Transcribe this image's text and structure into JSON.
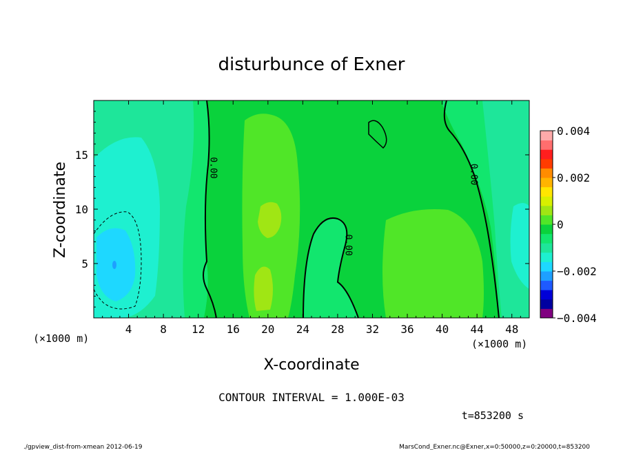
{
  "chart_data": {
    "type": "heatmap",
    "title": "disturbunce of Exner",
    "xlabel": "X-coordinate",
    "ylabel": "Z-coordinate",
    "x_unit_left": "(×1000 m)",
    "x_unit_right": "(×1000 m)",
    "xlim": [
      0,
      50
    ],
    "ylim": [
      0,
      20
    ],
    "xticks": [
      4,
      8,
      12,
      16,
      20,
      24,
      28,
      32,
      36,
      40,
      44,
      48
    ],
    "yticks": [
      5,
      10,
      15
    ],
    "colorbar": {
      "min": -0.004,
      "max": 0.004,
      "ticks": [
        {
          "value": 0.004,
          "label": "0.004"
        },
        {
          "value": 0.002,
          "label": "0.002"
        },
        {
          "value": 0,
          "label": "0"
        },
        {
          "value": -0.002,
          "label": "−0.002"
        },
        {
          "value": -0.004,
          "label": "−0.004"
        }
      ],
      "colors": [
        "#800080",
        "#0000a0",
        "#0000d8",
        "#1e5aff",
        "#1ea0ff",
        "#1ed8ff",
        "#1ef0d0",
        "#1ee69a",
        "#12e66e",
        "#0ad23c",
        "#50e628",
        "#a0e614",
        "#d8f000",
        "#ffe600",
        "#ffb400",
        "#ff8c00",
        "#ff3c00",
        "#ff1e1e",
        "#ff6e6e",
        "#ffaaaa"
      ]
    },
    "contour_labels": [
      {
        "x": 13.4,
        "z": 13.8,
        "text": "0.00"
      },
      {
        "x": 28.9,
        "z": 6.7,
        "text": "0.00"
      },
      {
        "x": 43.3,
        "z": 13.2,
        "text": "0.00"
      }
    ],
    "contour_interval_text": "CONTOUR INTERVAL = 1.000E-03",
    "time_text": "t=853200 s"
  },
  "footer": {
    "left": "./gpview_dist-from-xmean  2012-06-19",
    "right": "MarsCond_Exner.nc@Exner,x=0:50000,z=0:20000,t=853200"
  }
}
